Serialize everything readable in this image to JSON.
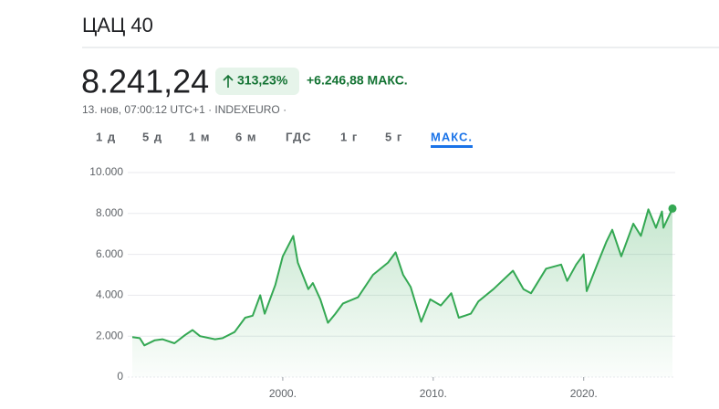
{
  "header": {
    "title": "ЦАЦ 40",
    "price": "8.241,24",
    "change_percent": "313,23%",
    "change": "+6.246,88 МАКС.",
    "subtitle": "13. нов, 07:00:12 UTC+1 · INDEXEURO ·",
    "tabs": [
      "1 д",
      "5 д",
      "1 м",
      "6 м",
      "ГДС",
      "1 г",
      "5 г",
      "МАКС."
    ],
    "active_tab": 7
  },
  "chart_data": {
    "type": "line",
    "color": "#34a853",
    "grid": true,
    "x": [
      1990.0,
      1990.5,
      1990.8,
      1991.5,
      1992.0,
      1992.8,
      1993.5,
      1994.0,
      1994.5,
      1995.5,
      1996.0,
      1996.8,
      1997.5,
      1998.0,
      1998.5,
      1998.8,
      1999.5,
      2000.0,
      2000.7,
      2001.0,
      2001.7,
      2002.0,
      2002.5,
      2003.0,
      2003.5,
      2004.0,
      2005.0,
      2006.0,
      2007.0,
      2007.5,
      2008.0,
      2008.5,
      2009.2,
      2009.8,
      2010.5,
      2011.2,
      2011.7,
      2012.5,
      2013.0,
      2014.0,
      2015.3,
      2016.0,
      2016.5,
      2017.5,
      2018.5,
      2018.9,
      2019.5,
      2020.0,
      2020.2,
      2020.9,
      2021.5,
      2021.9,
      2022.5,
      2023.3,
      2023.8,
      2024.3,
      2024.8,
      2025.2,
      2025.3,
      2025.9
    ],
    "values": [
      1950,
      1900,
      1550,
      1800,
      1850,
      1650,
      2050,
      2300,
      2000,
      1850,
      1900,
      2200,
      2900,
      3000,
      4000,
      3100,
      4500,
      5900,
      6900,
      5600,
      4300,
      4600,
      3800,
      2650,
      3100,
      3600,
      3900,
      5000,
      5600,
      6100,
      5000,
      4400,
      2700,
      3800,
      3500,
      4100,
      2900,
      3100,
      3700,
      4300,
      5200,
      4300,
      4100,
      5300,
      5500,
      4700,
      5500,
      6000,
      4200,
      5500,
      6600,
      7200,
      5900,
      7500,
      6900,
      8200,
      7300,
      8100,
      7300,
      8241.24
    ],
    "xlim": [
      1990,
      2025.9
    ],
    "ylim": [
      0,
      10000
    ],
    "xticks": [
      {
        "value": 2000,
        "label": "2000."
      },
      {
        "value": 2010,
        "label": "2010."
      },
      {
        "value": 2020,
        "label": "2020."
      }
    ],
    "yticks": [
      {
        "value": 0,
        "label": "0"
      },
      {
        "value": 2000,
        "label": "2.000"
      },
      {
        "value": 4000,
        "label": "4.000"
      },
      {
        "value": 6000,
        "label": "6.000"
      },
      {
        "value": 8000,
        "label": "8.000"
      },
      {
        "value": 10000,
        "label": "10.000"
      }
    ]
  }
}
